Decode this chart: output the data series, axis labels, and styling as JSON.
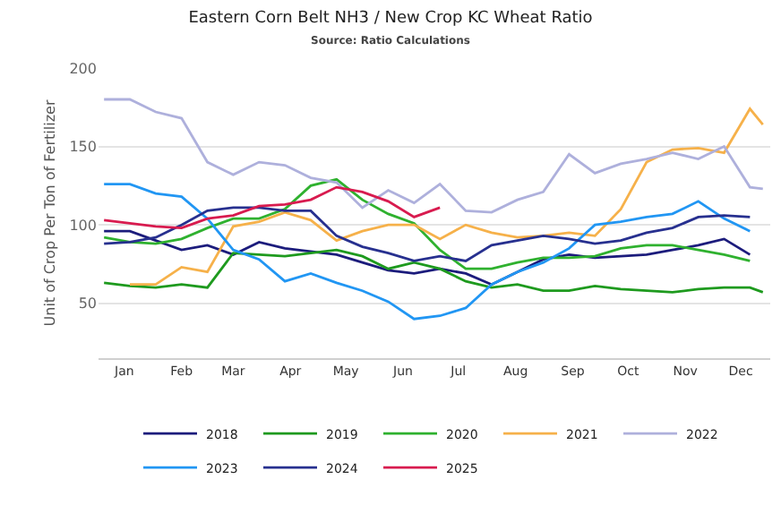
{
  "chart_data": {
    "type": "line",
    "title": "Eastern Corn Belt NH3 / New Crop KC Wheat Ratio",
    "subtitle": "Source: Ratio Calculations",
    "ylabel": "Unit of Crop Per Ton of Fertilizer",
    "x": [
      "--01-04",
      "--01-18",
      "--02-01",
      "--02-15",
      "--03-01",
      "--03-15",
      "--03-29",
      "--04-12",
      "--04-26",
      "--05-10",
      "--05-24",
      "--06-07",
      "--06-21",
      "--07-05",
      "--07-19",
      "--08-02",
      "--08-16",
      "--08-30",
      "--09-13",
      "--09-27",
      "--10-11",
      "--10-25",
      "--11-08",
      "--11-22",
      "--12-06",
      "--12-20",
      "--12-27"
    ],
    "series": [
      {
        "name": "2018",
        "color": "#1c1c7c",
        "values": [
          96,
          96,
          90,
          84,
          87,
          81,
          89,
          85,
          83,
          81,
          76,
          71,
          69,
          72,
          69,
          62,
          70,
          78,
          81,
          79,
          80,
          81,
          84,
          87,
          91,
          81,
          null
        ]
      },
      {
        "name": "2019",
        "color": "#1e9a1e",
        "values": [
          63,
          61,
          60,
          62,
          60,
          82,
          81,
          80,
          82,
          84,
          80,
          72,
          76,
          72,
          64,
          60,
          62,
          58,
          58,
          61,
          59,
          58,
          57,
          59,
          60,
          60,
          57
        ]
      },
      {
        "name": "2020",
        "color": "#2fb12f",
        "values": [
          92,
          89,
          88,
          91,
          98,
          104,
          104,
          110,
          125,
          129,
          116,
          107,
          101,
          84,
          72,
          72,
          76,
          79,
          79,
          80,
          85,
          87,
          87,
          84,
          81,
          77,
          null
        ]
      },
      {
        "name": "2021",
        "color": "#f6b14a",
        "values": [
          null,
          62,
          62,
          73,
          70,
          99,
          102,
          108,
          103,
          90,
          96,
          100,
          100,
          91,
          100,
          95,
          92,
          93,
          95,
          93,
          110,
          140,
          148,
          149,
          146,
          174,
          164
        ]
      },
      {
        "name": "2022",
        "color": "#aeb0dc",
        "values": [
          180,
          180,
          172,
          168,
          140,
          132,
          140,
          138,
          130,
          127,
          111,
          122,
          114,
          126,
          109,
          108,
          116,
          121,
          145,
          133,
          139,
          142,
          146,
          142,
          150,
          124,
          123
        ]
      },
      {
        "name": "2023",
        "color": "#2196f3",
        "values": [
          126,
          126,
          120,
          118,
          104,
          84,
          78,
          64,
          69,
          63,
          58,
          51,
          40,
          42,
          47,
          62,
          70,
          76,
          85,
          100,
          102,
          105,
          107,
          115,
          104,
          96,
          null
        ]
      },
      {
        "name": "2024",
        "color": "#27308f",
        "values": [
          88,
          89,
          92,
          100,
          109,
          111,
          111,
          109,
          109,
          93,
          86,
          82,
          77,
          80,
          77,
          87,
          90,
          93,
          91,
          88,
          90,
          95,
          98,
          105,
          106,
          105,
          null
        ]
      },
      {
        "name": "2025",
        "color": "#d81b4f",
        "values": [
          103,
          101,
          99,
          98,
          104,
          106,
          112,
          113,
          116,
          124,
          121,
          115,
          105,
          111,
          null,
          null,
          null,
          null,
          null,
          null,
          null,
          null,
          null,
          null,
          null,
          null,
          null
        ]
      }
    ],
    "xlim": [
      "--01-01",
      "--12-31"
    ],
    "xticks": [
      {
        "value": "--01-15",
        "label": "Jan"
      },
      {
        "value": "--02-15",
        "label": "Feb"
      },
      {
        "value": "--03-15",
        "label": "Mar"
      },
      {
        "value": "--04-15",
        "label": "Apr"
      },
      {
        "value": "--05-15",
        "label": "May"
      },
      {
        "value": "--06-15",
        "label": "Jun"
      },
      {
        "value": "--07-15",
        "label": "Jul"
      },
      {
        "value": "--08-15",
        "label": "Aug"
      },
      {
        "value": "--09-15",
        "label": "Sep"
      },
      {
        "value": "--10-15",
        "label": "Oct"
      },
      {
        "value": "--11-15",
        "label": "Nov"
      },
      {
        "value": "--12-15",
        "label": "Dec"
      }
    ],
    "ylim": [
      15,
      200
    ],
    "yticks": [
      50,
      100,
      150,
      200
    ],
    "grid": "y",
    "legend": "bottom",
    "marker": "none",
    "line_style": "solid"
  }
}
